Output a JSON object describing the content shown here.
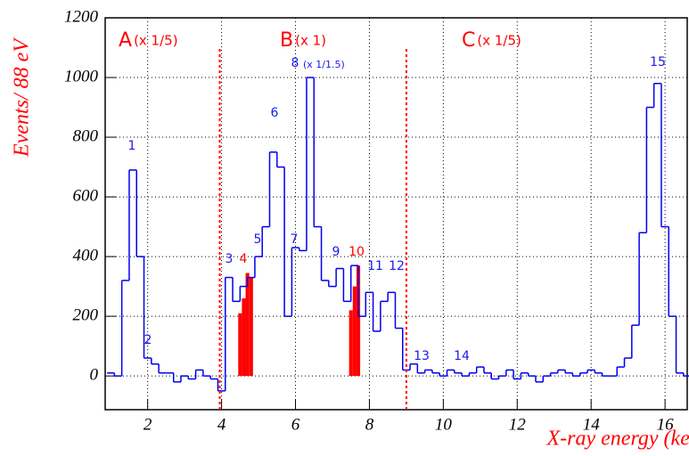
{
  "chart_data": {
    "type": "histogram",
    "xlabel": "X-ray energy (keV)",
    "ylabel": "Events/ 88 eV",
    "bins": [
      0.9,
      1.1,
      1.3,
      1.5,
      1.7,
      1.9,
      2.1,
      2.3,
      2.5,
      2.7,
      2.9,
      3.1,
      3.3,
      3.5,
      3.7,
      3.9,
      4.1,
      4.3,
      4.5,
      4.7,
      4.9,
      5.1,
      5.3,
      5.5,
      5.7,
      5.9,
      6.1,
      6.3,
      6.5,
      6.7,
      6.9,
      7.1,
      7.3,
      7.5,
      7.7,
      7.9,
      8.1,
      8.3,
      8.5,
      8.7,
      8.9,
      9.1,
      9.3,
      9.5,
      9.7,
      9.9,
      10.1,
      10.3,
      10.5,
      10.7,
      10.9,
      11.1,
      11.3,
      11.5,
      11.7,
      11.9,
      12.1,
      12.3,
      12.5,
      12.7,
      12.9,
      13.1,
      13.3,
      13.5,
      13.7,
      13.9,
      14.1,
      14.3,
      14.5,
      14.7,
      14.9,
      15.1,
      15.3,
      15.5,
      15.7,
      15.9,
      16.1,
      16.3,
      16.5,
      16.7
    ],
    "counts": [
      10,
      0,
      320,
      690,
      400,
      60,
      40,
      10,
      10,
      -20,
      0,
      -10,
      20,
      0,
      -10,
      -50,
      330,
      250,
      300,
      330,
      400,
      500,
      750,
      700,
      200,
      430,
      420,
      1000,
      500,
      320,
      300,
      360,
      250,
      370,
      200,
      280,
      150,
      250,
      280,
      160,
      20,
      40,
      10,
      20,
      10,
      0,
      20,
      10,
      0,
      10,
      30,
      10,
      -10,
      0,
      20,
      -10,
      10,
      0,
      -20,
      0,
      10,
      20,
      10,
      0,
      10,
      20,
      10,
      0,
      0,
      30,
      60,
      170,
      480,
      900,
      980,
      500,
      200,
      10,
      0
    ],
    "color": "#0000ee",
    "fills": [
      {
        "bins": [
          4.45,
          4.55,
          4.65,
          4.75,
          4.85
        ],
        "counts": [
          210,
          260,
          345,
          330
        ],
        "color": "#ff0000"
      },
      {
        "bins": [
          7.45,
          7.55,
          7.65,
          7.75
        ],
        "counts": [
          220,
          300,
          370
        ],
        "color": "#ff0000"
      }
    ],
    "vlines": [
      3.95,
      9.0
    ],
    "vline_color": "#ff0000",
    "xlim": [
      0.85,
      16.6
    ],
    "ylim": [
      -113,
      1200
    ],
    "xticks": [
      2,
      4,
      6,
      8,
      10,
      12,
      14,
      16
    ],
    "yticks": [
      0,
      200,
      400,
      600,
      800,
      1000,
      1200
    ],
    "grid": true,
    "regions": [
      {
        "letter": "A",
        "scale": "(x 1/5)"
      },
      {
        "letter": "B",
        "scale": "(x 1)"
      },
      {
        "letter": "C",
        "scale": "(x 1/5)"
      }
    ],
    "peaks": [
      {
        "text": "1",
        "color": "#1a1aee"
      },
      {
        "text": "2",
        "color": "#1a1aee"
      },
      {
        "text": "3",
        "color": "#1a1aee"
      },
      {
        "text": "4",
        "color": "#ff0000"
      },
      {
        "text": "5",
        "color": "#1a1aee"
      },
      {
        "text": "6",
        "color": "#1a1aee"
      },
      {
        "text": "7",
        "color": "#1a1aee"
      },
      {
        "text": "8",
        "color": "#1a1aee"
      },
      {
        "text": "9",
        "color": "#1a1aee"
      },
      {
        "text": "10",
        "color": "#ff0000"
      },
      {
        "text": "11",
        "color": "#1a1aee"
      },
      {
        "text": "12",
        "color": "#1a1aee"
      },
      {
        "text": "13",
        "color": "#1a1aee"
      },
      {
        "text": "14",
        "color": "#1a1aee"
      },
      {
        "text": "15",
        "color": "#1a1aee"
      }
    ],
    "peak_note": "(x 1/1.5)"
  }
}
